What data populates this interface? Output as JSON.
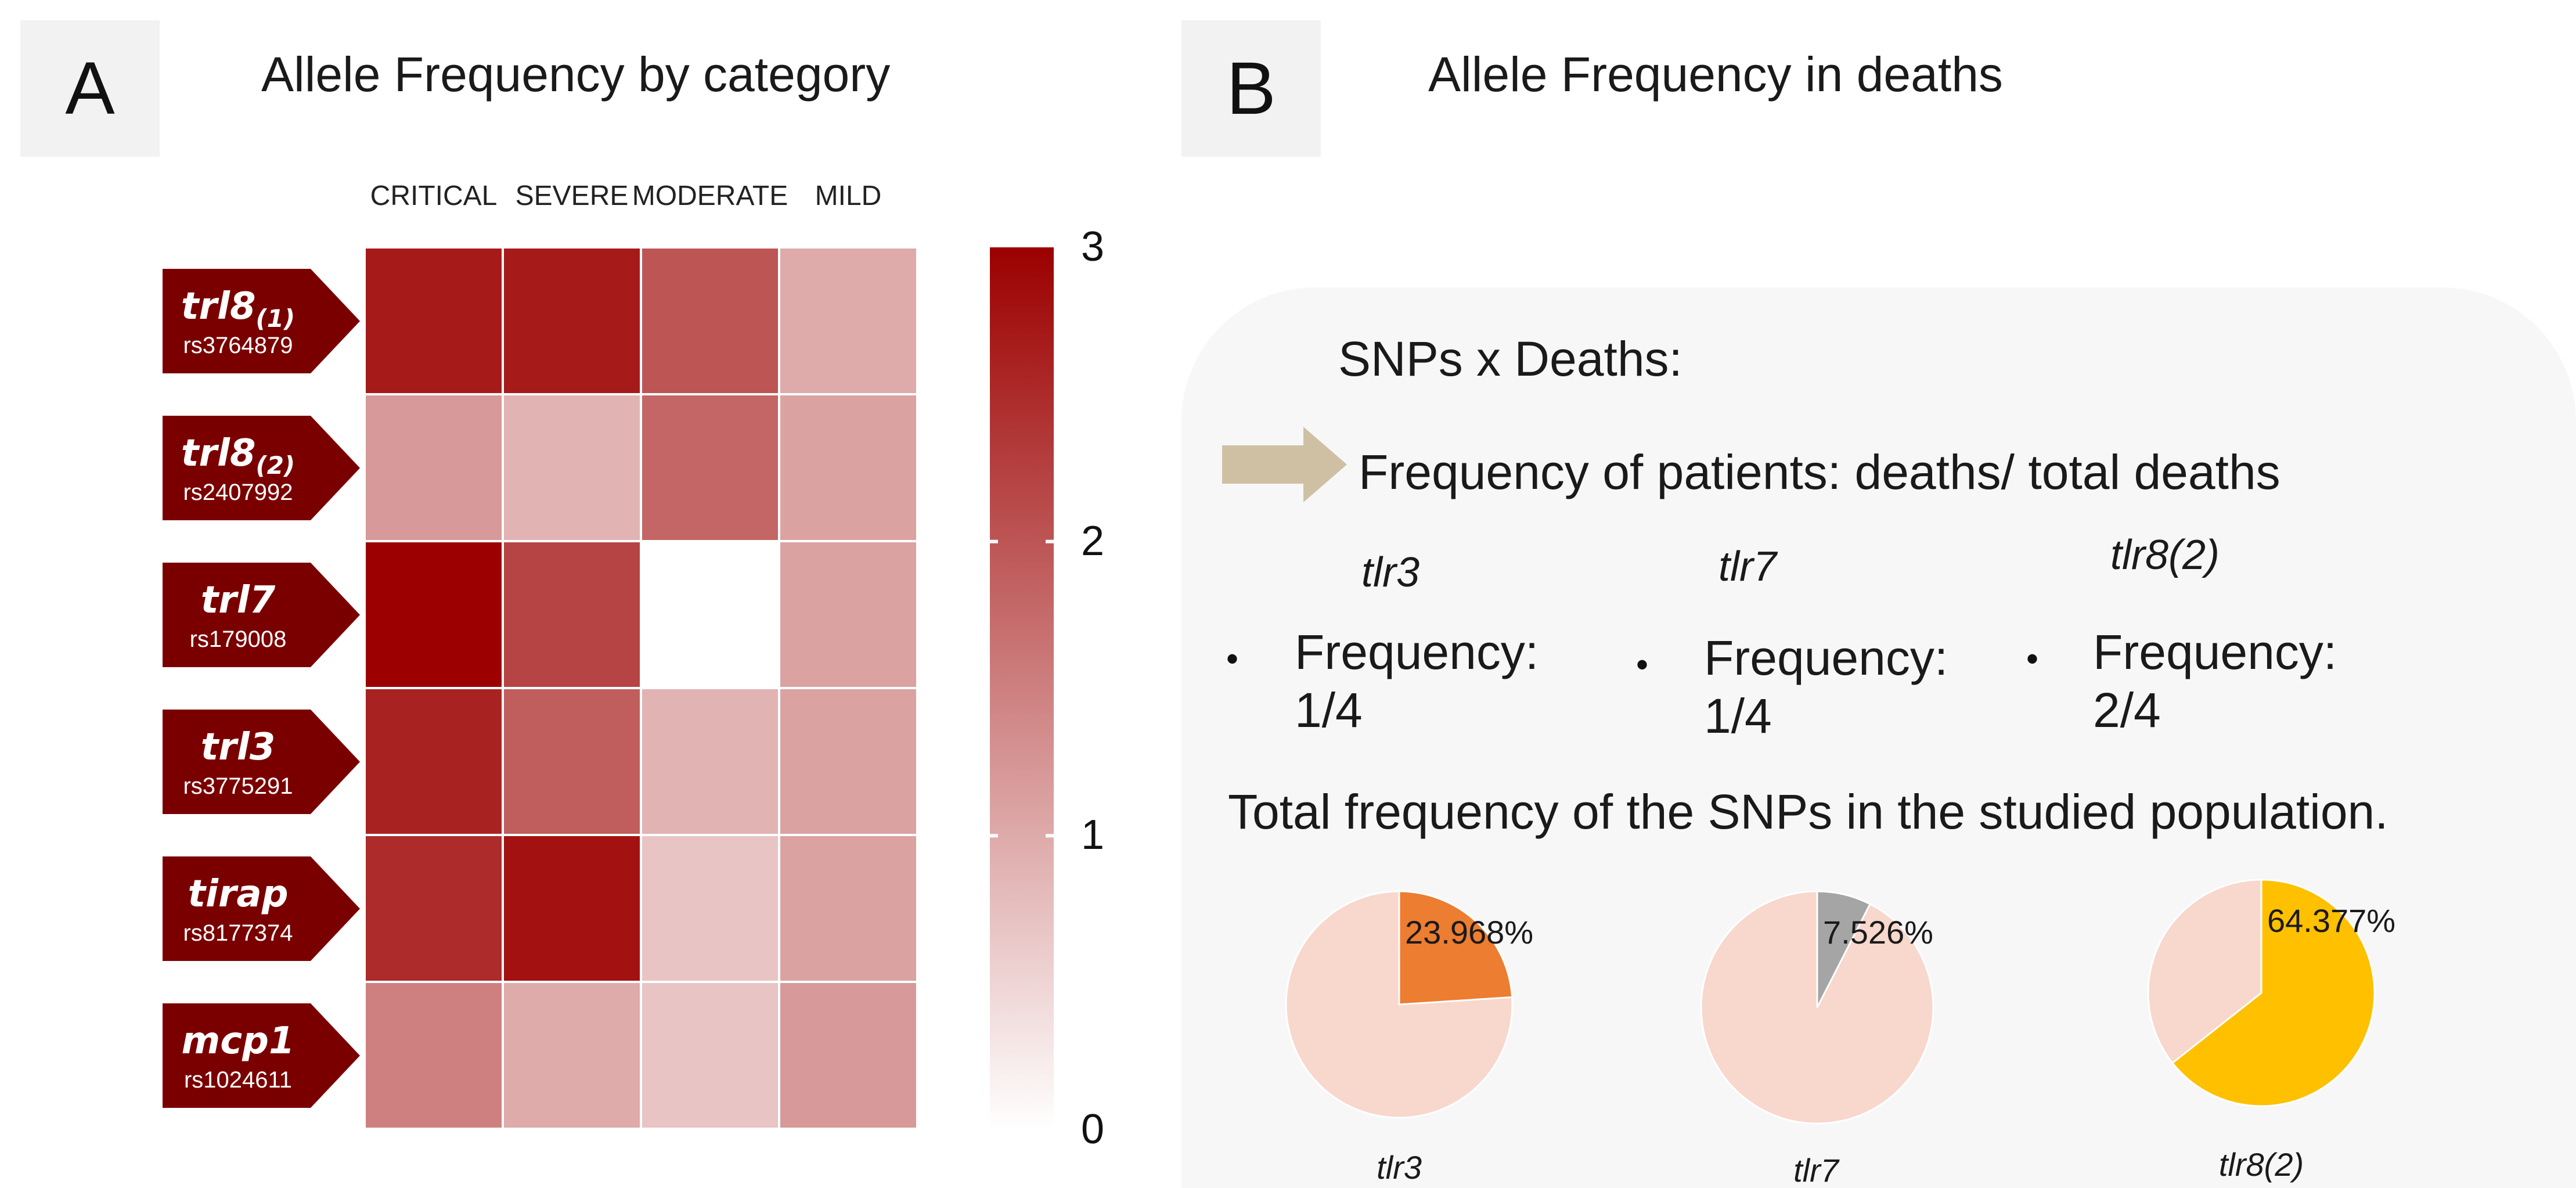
{
  "panel_a": {
    "letter": "A",
    "title": "Allele Frequency by category"
  },
  "panel_b": {
    "letter": "B",
    "title": "Allele Frequency in deaths",
    "snps_heading": "SNPs x Deaths:",
    "freq_line": "Frequency of patients:   deaths/ total deaths",
    "genes": [
      {
        "name": "tlr3",
        "freq_label": "Frequency:",
        "freq_value": "1/4"
      },
      {
        "name": "tlr7",
        "freq_label": "Frequency:",
        "freq_value": "1/4"
      },
      {
        "name": "tlr8(2)",
        "freq_label": "Frequency:",
        "freq_value": "2/4"
      }
    ],
    "total_line": "Total frequency of the SNPs in the studied population.",
    "pies": [
      {
        "label": "tlr3",
        "percent": 23.968,
        "percent_text": "23.968%",
        "color": "#ed7d31",
        "rest_color": "#f8d7cd"
      },
      {
        "label": "tlr7",
        "percent": 7.526,
        "percent_text": "7.526%",
        "color": "#a5a5a5",
        "rest_color": "#f8d7cd"
      },
      {
        "label": "tlr8(2)",
        "percent": 64.377,
        "percent_text": "64.377%",
        "color": "#ffc000",
        "rest_color": "#f8d7cd"
      }
    ]
  },
  "chart_data": {
    "type": "heatmap",
    "title": "Allele Frequency by category",
    "columns": [
      "CRITICAL",
      "SEVERE",
      "MODERATE",
      "MILD"
    ],
    "rows": [
      {
        "gene": "trl8",
        "sub": "(1)",
        "rs": "rs3764879"
      },
      {
        "gene": "trl8",
        "sub": "(2)",
        "rs": "rs2407992"
      },
      {
        "gene": "trl7",
        "sub": "",
        "rs": "rs179008"
      },
      {
        "gene": "trl3",
        "sub": "",
        "rs": "rs3775291"
      },
      {
        "gene": "tirap",
        "sub": "",
        "rs": "rs8177374"
      },
      {
        "gene": "mcp1",
        "sub": "",
        "rs": "rs1024611"
      }
    ],
    "values": [
      [
        2.7,
        2.7,
        2.0,
        1.0
      ],
      [
        1.2,
        0.9,
        1.8,
        1.1
      ],
      [
        3.0,
        2.2,
        0.0,
        1.1
      ],
      [
        2.6,
        1.9,
        0.9,
        1.1
      ],
      [
        2.5,
        2.8,
        0.7,
        1.1
      ],
      [
        1.5,
        1.0,
        0.7,
        1.2
      ]
    ],
    "scale": {
      "min": 0,
      "max": 3,
      "ticks": [
        "0",
        "1",
        "2",
        "3"
      ],
      "low_color": "#ffffff",
      "high_color": "#9c0000"
    },
    "gene_tag_color": "#7a0000"
  }
}
